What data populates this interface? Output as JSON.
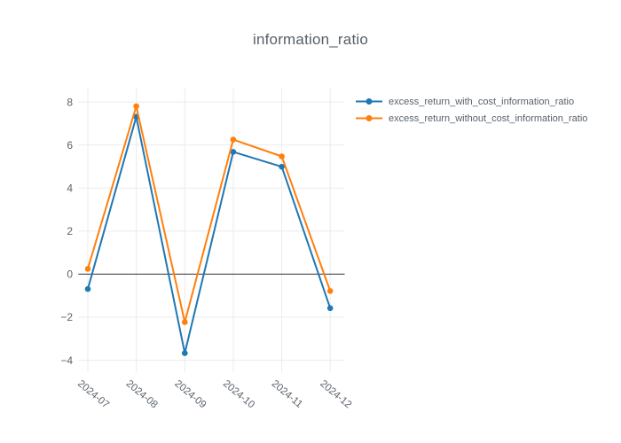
{
  "chart_data": {
    "type": "line",
    "title": "information_ratio",
    "categories": [
      "2024-07",
      "2024-08",
      "2024-09",
      "2024-10",
      "2024-11",
      "2024-12"
    ],
    "series": [
      {
        "name": "excess_return_with_cost_information_ratio",
        "color": "#1f77b4",
        "values": [
          -0.69,
          7.31,
          -3.67,
          5.68,
          4.99,
          -1.58
        ]
      },
      {
        "name": "excess_return_without_cost_information_ratio",
        "color": "#ff7f0e",
        "values": [
          0.25,
          7.8,
          -2.23,
          6.25,
          5.47,
          -0.78
        ]
      }
    ],
    "yticks": [
      -4,
      -2,
      0,
      2,
      4,
      6,
      8
    ],
    "ytick_labels": [
      "−4",
      "−2",
      "0",
      "2",
      "4",
      "6",
      "8"
    ],
    "ylim": [
      -4.55,
      8.62
    ],
    "xlabel": "",
    "ylabel": "",
    "grid": true,
    "zeroline": true,
    "legend_position": "top-right",
    "marker": "circle"
  },
  "style": {
    "background": "#ffffff",
    "grid_color": "#ebebeb",
    "zeroline_color": "#474747",
    "tick_color": "#59626c",
    "title_color": "#575f66"
  }
}
